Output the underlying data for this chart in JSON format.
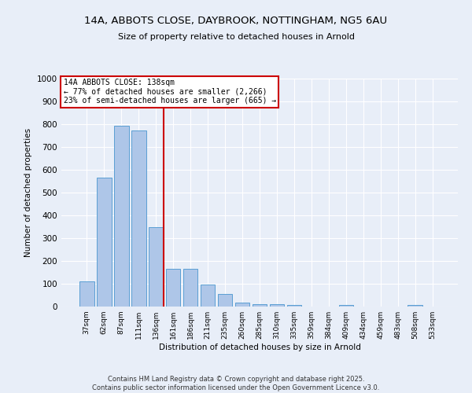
{
  "title_line1": "14A, ABBOTS CLOSE, DAYBROOK, NOTTINGHAM, NG5 6AU",
  "title_line2": "Size of property relative to detached houses in Arnold",
  "xlabel": "Distribution of detached houses by size in Arnold",
  "ylabel": "Number of detached properties",
  "bar_labels": [
    "37sqm",
    "62sqm",
    "87sqm",
    "111sqm",
    "136sqm",
    "161sqm",
    "186sqm",
    "211sqm",
    "235sqm",
    "260sqm",
    "285sqm",
    "310sqm",
    "335sqm",
    "359sqm",
    "384sqm",
    "409sqm",
    "434sqm",
    "459sqm",
    "483sqm",
    "508sqm",
    "533sqm"
  ],
  "bar_values": [
    112,
    565,
    793,
    773,
    350,
    165,
    165,
    98,
    55,
    18,
    12,
    10,
    8,
    0,
    0,
    8,
    0,
    0,
    0,
    8,
    0
  ],
  "bar_color": "#aec6e8",
  "bar_edge_color": "#5a9fd4",
  "background_color": "#e8eef8",
  "grid_color": "#ffffff",
  "red_line_x": 4.45,
  "annotation_text_line1": "14A ABBOTS CLOSE: 138sqm",
  "annotation_text_line2": "← 77% of detached houses are smaller (2,266)",
  "annotation_text_line3": "23% of semi-detached houses are larger (665) →",
  "annotation_box_color": "#ffffff",
  "annotation_box_edge_color": "#cc0000",
  "red_line_color": "#cc0000",
  "ylim": [
    0,
    1000
  ],
  "yticks": [
    0,
    100,
    200,
    300,
    400,
    500,
    600,
    700,
    800,
    900,
    1000
  ],
  "footer_line1": "Contains HM Land Registry data © Crown copyright and database right 2025.",
  "footer_line2": "Contains public sector information licensed under the Open Government Licence v3.0."
}
